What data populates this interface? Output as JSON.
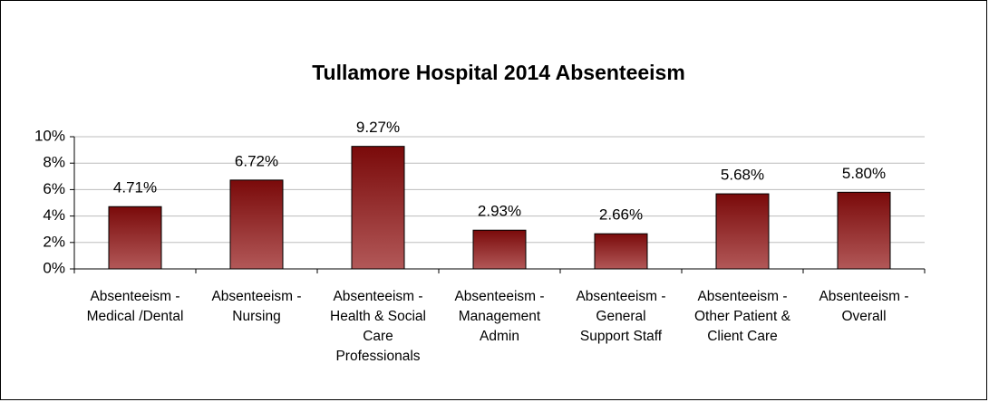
{
  "chart_data": {
    "type": "bar",
    "title": "Tullamore Hospital 2014 Absenteeism",
    "categories": [
      "Absenteeism - Medical /Dental",
      "Absenteeism - Nursing",
      "Absenteeism - Health & Social Care Professionals",
      "Absenteeism - Management Admin",
      "Absenteeism - General Support Staff",
      "Absenteeism - Other Patient & Client Care",
      "Absenteeism - Overall"
    ],
    "values": [
      4.71,
      6.72,
      9.27,
      2.93,
      2.66,
      5.68,
      5.8
    ],
    "value_labels": [
      "4.71%",
      "6.72%",
      "9.27%",
      "2.93%",
      "2.66%",
      "5.68%",
      "5.80%"
    ],
    "color": "#8b1414",
    "ylim": [
      0,
      10
    ],
    "yticks": [
      {
        "value": 0,
        "label": "0%"
      },
      {
        "value": 2,
        "label": "2%"
      },
      {
        "value": 4,
        "label": "4%"
      },
      {
        "value": 6,
        "label": "6%"
      },
      {
        "value": 8,
        "label": "8%"
      },
      {
        "value": 10,
        "label": "10%"
      }
    ],
    "grid": true
  }
}
